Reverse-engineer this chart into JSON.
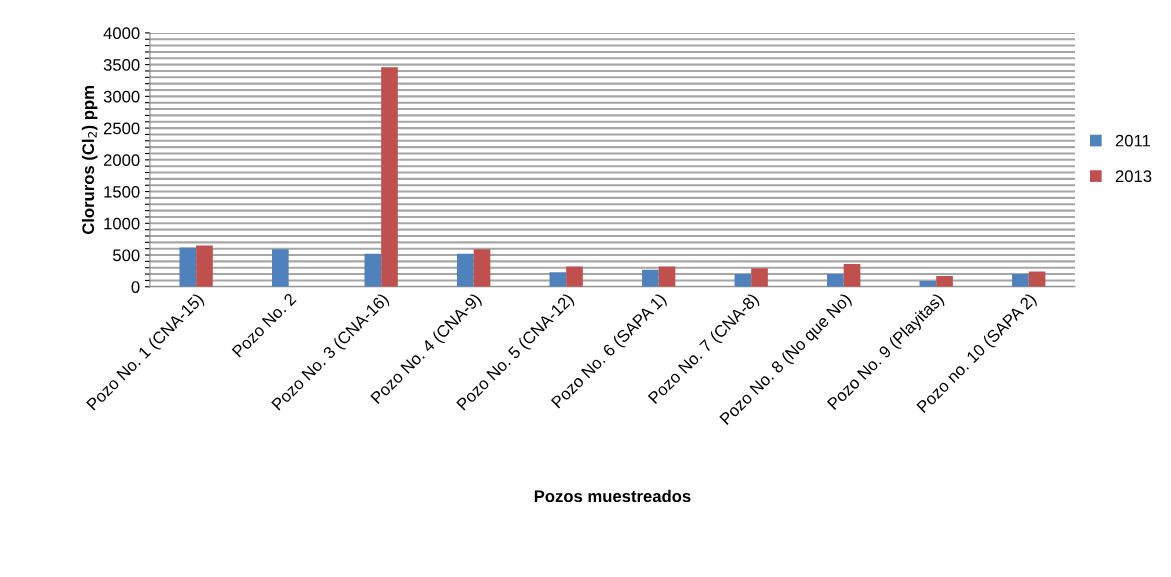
{
  "chart_data": {
    "type": "bar",
    "xlabel": "Pozos muestreados",
    "ylabel": "Cloruros (Cl$_{2}$) ppm",
    "categories": [
      "Pozo No. 1 (CNA-15)",
      "Pozo No. 2",
      "Pozo No. 3 (CNA-16)",
      "Pozo No. 4 (CNA-9)",
      "Pozo No. 5 (CNA-12)",
      "Pozo No. 6 (SAPA 1)",
      "Pozo No. 7 (CNA-8)",
      "Pozo No. 8 (No que No)",
      "Pozo No. 9 (Playitas)",
      "Pozo no. 10 (SAPA 2)"
    ],
    "series": [
      {
        "name": "2011",
        "color": "#4f81bd",
        "values": [
          620,
          590,
          520,
          520,
          230,
          270,
          200,
          200,
          90,
          200
        ]
      },
      {
        "name": "2013",
        "color": "#c0504d",
        "values": [
          650,
          null,
          3460,
          590,
          320,
          320,
          290,
          360,
          170,
          240
        ]
      }
    ],
    "ylim": [
      0,
      4000
    ],
    "yticks": [
      0,
      {
        "value": 100,
        "label": null
      },
      {
        "value": 200,
        "label": null
      },
      {
        "value": 300,
        "label": null
      },
      {
        "value": 400,
        "label": null
      },
      500,
      {
        "value": 600,
        "label": null
      },
      {
        "value": 700,
        "label": null
      },
      {
        "value": 800,
        "label": null
      },
      {
        "value": 900,
        "label": null
      },
      1000,
      {
        "value": 1100,
        "label": null
      },
      {
        "value": 1200,
        "label": null
      },
      {
        "value": 1300,
        "label": null
      },
      {
        "value": 1400,
        "label": null
      },
      1500,
      {
        "value": 1600,
        "label": null
      },
      {
        "value": 1700,
        "label": null
      },
      {
        "value": 1800,
        "label": null
      },
      {
        "value": 1900,
        "label": null
      },
      2000,
      {
        "value": 2100,
        "label": null
      },
      {
        "value": 2200,
        "label": null
      },
      {
        "value": 2300,
        "label": null
      },
      {
        "value": 2400,
        "label": null
      },
      2500,
      {
        "value": 2600,
        "label": null
      },
      {
        "value": 2700,
        "label": null
      },
      {
        "value": 2800,
        "label": null
      },
      {
        "value": 2900,
        "label": null
      },
      3000,
      {
        "value": 3100,
        "label": null
      },
      {
        "value": 3200,
        "label": null
      },
      {
        "value": 3300,
        "label": null
      },
      {
        "value": 3400,
        "label": null
      },
      3500,
      {
        "value": 3600,
        "label": null
      },
      {
        "value": 3700,
        "label": null
      },
      {
        "value": 3800,
        "label": null
      },
      {
        "value": 3900,
        "label": null
      },
      4000
    ],
    "grid": "y",
    "legend": "right"
  }
}
